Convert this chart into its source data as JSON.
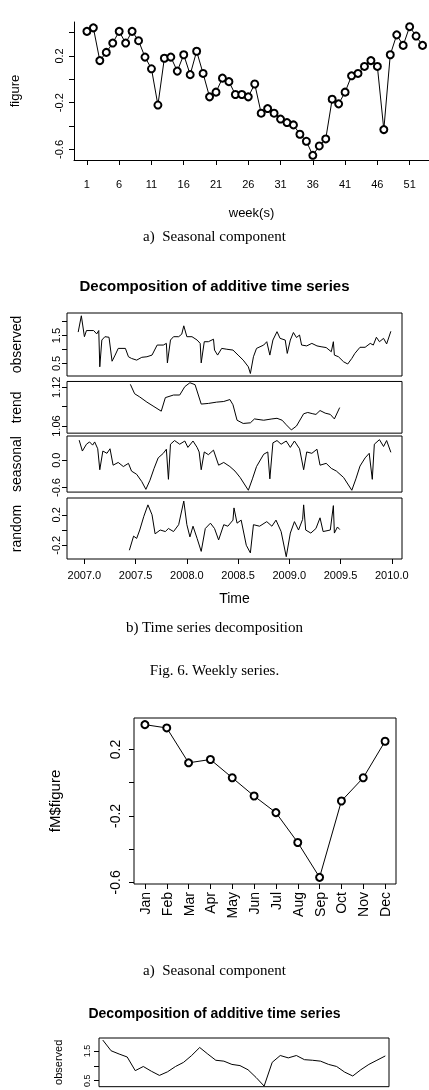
{
  "chart_data": [
    {
      "type": "line",
      "xlabel": "week(s)",
      "ylabel": "figure",
      "annotations": [
        "a)  Seasonal component"
      ],
      "marker": "circle",
      "line_style": "solid",
      "color": "#000000",
      "x": [
        1,
        2,
        3,
        4,
        5,
        6,
        7,
        8,
        9,
        10,
        11,
        12,
        13,
        14,
        15,
        16,
        17,
        18,
        19,
        20,
        21,
        22,
        23,
        24,
        25,
        26,
        27,
        28,
        29,
        30,
        31,
        32,
        33,
        34,
        35,
        36,
        37,
        38,
        39,
        40,
        41,
        42,
        43,
        44,
        45,
        46,
        47,
        48,
        49,
        50,
        51,
        52,
        53
      ],
      "values": [
        0.41,
        0.44,
        0.16,
        0.23,
        0.31,
        0.41,
        0.31,
        0.41,
        0.33,
        0.19,
        0.09,
        -0.22,
        0.18,
        0.19,
        0.07,
        0.21,
        0.04,
        0.24,
        0.05,
        -0.15,
        -0.11,
        0.01,
        -0.02,
        -0.13,
        -0.13,
        -0.15,
        -0.04,
        -0.29,
        -0.25,
        -0.29,
        -0.34,
        -0.37,
        -0.39,
        -0.47,
        -0.53,
        -0.65,
        -0.57,
        -0.51,
        -0.17,
        -0.21,
        -0.11,
        0.03,
        0.05,
        0.11,
        0.16,
        0.11,
        -0.43,
        0.21,
        0.38,
        0.29,
        0.45,
        0.37,
        0.29
      ],
      "xlim": [
        -1,
        54
      ],
      "xticks": [
        1,
        6,
        11,
        16,
        21,
        26,
        31,
        36,
        41,
        46,
        51
      ],
      "ylim": [
        -0.69,
        0.49
      ],
      "yticks": [
        -0.6,
        {
          "value": -0.4,
          "label": null
        },
        -0.2,
        {
          "value": 0,
          "label": null
        },
        0.2,
        {
          "value": 0.4,
          "label": null
        }
      ]
    },
    {
      "type": "line",
      "title": "Decomposition of additive time series",
      "ylabel": "observed",
      "color": "#000000",
      "tick_labels": "y",
      "x": [
        2006.94,
        2006.97,
        2007.0,
        2007.02,
        2007.09,
        2007.12,
        2007.14,
        2007.15,
        2007.17,
        2007.2,
        2007.24,
        2007.27,
        2007.3,
        2007.33,
        2007.4,
        2007.43,
        2007.46,
        2007.51,
        2007.56,
        2007.61,
        2007.66,
        2007.71,
        2007.77,
        2007.8,
        2007.81,
        2007.84,
        2007.87,
        2007.92,
        2007.95,
        2007.97,
        2008.0,
        2008.05,
        2008.1,
        2008.13,
        2008.14,
        2008.17,
        2008.21,
        2008.26,
        2008.27,
        2008.3,
        2008.34,
        2008.39,
        2008.45,
        2008.5,
        2008.55,
        2008.6,
        2008.62,
        2008.65,
        2008.68,
        2008.75,
        2008.78,
        2008.81,
        2008.84,
        2008.88,
        2008.91,
        2008.96,
        2008.98,
        2009.01,
        2009.04,
        2009.07,
        2009.1,
        2009.12,
        2009.17,
        2009.22,
        2009.27,
        2009.31,
        2009.36,
        2009.41,
        2009.43,
        2009.44,
        2009.48,
        2009.53,
        2009.57,
        2009.61,
        2009.64,
        2009.69,
        2009.74,
        2009.79,
        2009.82,
        2009.85,
        2009.88,
        2009.92,
        2009.95,
        2009.99
      ],
      "values": [
        1.64,
        2.21,
        1.46,
        1.68,
        1.68,
        1.56,
        1.68,
        0.38,
        1.34,
        1.46,
        1.44,
        0.58,
        0.8,
        1.04,
        1.04,
        0.74,
        0.68,
        0.62,
        0.72,
        0.74,
        0.8,
        1.16,
        1.16,
        1.22,
        0.52,
        1.34,
        1.46,
        1.46,
        1.55,
        1.85,
        1.46,
        1.46,
        1.34,
        1.22,
        0.52,
        1.28,
        1.28,
        1.37,
        0.98,
        0.8,
        1.04,
        1.01,
        0.98,
        0.8,
        0.62,
        0.38,
        0.14,
        0.74,
        1.04,
        1.16,
        1.28,
        0.8,
        1.34,
        1.64,
        1.4,
        1.34,
        0.86,
        1.34,
        1.61,
        1.43,
        1.52,
        1.16,
        1.13,
        1.22,
        1.13,
        1.1,
        1.07,
        0.92,
        1.28,
        0.8,
        0.74,
        0.56,
        0.48,
        0.68,
        0.86,
        1.08,
        1.08,
        1.22,
        1.16,
        1.44,
        1.28,
        1.4,
        1.2,
        1.64
      ],
      "xlim": [
        2006.83,
        2010.1
      ],
      "ylim": [
        0.05,
        2.31
      ],
      "yticks": [
        0.5,
        {
          "value": 1,
          "label": null
        },
        1.5,
        {
          "value": 2,
          "label": null
        }
      ]
    },
    {
      "type": "line",
      "ylabel": "trend",
      "color": "#000000",
      "tick_labels": "y",
      "x": [
        2007.45,
        2007.49,
        2007.54,
        2007.61,
        2007.67,
        2007.75,
        2007.79,
        2007.87,
        2007.93,
        2007.98,
        2008.03,
        2008.08,
        2008.14,
        2008.21,
        2008.29,
        2008.36,
        2008.42,
        2008.45,
        2008.49,
        2008.55,
        2008.62,
        2008.66,
        2008.75,
        2008.83,
        2008.88,
        2008.93,
        2008.97,
        2009.02,
        2009.07,
        2009.14,
        2009.18,
        2009.23,
        2009.26,
        2009.3,
        2009.35,
        2009.4,
        2009.44,
        2009.49
      ],
      "values": [
        1.124,
        1.11,
        1.105,
        1.097,
        1.091,
        1.083,
        1.104,
        1.108,
        1.108,
        1.121,
        1.127,
        1.124,
        1.094,
        1.095,
        1.097,
        1.098,
        1.101,
        1.093,
        1.069,
        1.064,
        1.065,
        1.071,
        1.069,
        1.071,
        1.072,
        1.069,
        1.062,
        1.054,
        1.06,
        1.079,
        1.081,
        1.079,
        1.078,
        1.084,
        1.08,
        1.078,
        1.071,
        1.088
      ],
      "xlim": [
        2006.83,
        2010.1
      ],
      "ylim": [
        1.049,
        1.129
      ],
      "yticks": [
        1.06,
        {
          "value": 1.09,
          "label": null
        },
        1.12
      ]
    },
    {
      "type": "line",
      "ylabel": "seasonal",
      "color": "#000000",
      "tick_labels": "y",
      "x": [
        2006.95,
        2006.98,
        2007.02,
        2007.05,
        2007.08,
        2007.1,
        2007.13,
        2007.15,
        2007.18,
        2007.22,
        2007.25,
        2007.28,
        2007.33,
        2007.38,
        2007.43,
        2007.46,
        2007.51,
        2007.56,
        2007.6,
        2007.64,
        2007.68,
        2007.72,
        2007.77,
        2007.8,
        2007.82,
        2007.84,
        2007.88,
        2007.93,
        2007.98,
        2008.01,
        2008.06,
        2008.1,
        2008.12,
        2008.14,
        2008.17,
        2008.21,
        2008.26,
        2008.31,
        2008.36,
        2008.42,
        2008.47,
        2008.52,
        2008.6,
        2008.64,
        2008.68,
        2008.75,
        2008.79,
        2008.81,
        2008.84,
        2008.88,
        2008.92,
        2008.97,
        2009.01,
        2009.05,
        2009.1,
        2009.14,
        2009.17,
        2009.22,
        2009.27,
        2009.3,
        2009.36,
        2009.41,
        2009.46,
        2009.53,
        2009.61,
        2009.65,
        2009.69,
        2009.74,
        2009.78,
        2009.81,
        2009.83,
        2009.88,
        2009.92,
        2009.95,
        2009.99
      ],
      "values": [
        0.43,
        0.2,
        0.35,
        0.4,
        0.33,
        0.4,
        0.25,
        -0.21,
        0.2,
        0.15,
        0.25,
        -0.11,
        -0.05,
        -0.14,
        -0.07,
        -0.24,
        -0.31,
        -0.47,
        -0.64,
        -0.44,
        -0.18,
        0.05,
        0.15,
        0.24,
        -0.42,
        0.35,
        0.43,
        0.35,
        0.42,
        0.28,
        0.42,
        0.28,
        0.18,
        -0.21,
        0.18,
        0.12,
        0.22,
        -0.11,
        -0.05,
        -0.14,
        -0.24,
        -0.38,
        -0.66,
        -0.41,
        -0.14,
        0.13,
        0.18,
        -0.41,
        0.38,
        0.43,
        0.35,
        0.42,
        0.28,
        0.42,
        0.25,
        -0.21,
        0.18,
        0.15,
        0.24,
        -0.11,
        -0.07,
        -0.18,
        -0.24,
        -0.38,
        -0.66,
        -0.41,
        -0.13,
        0.05,
        0.15,
        -0.42,
        0.35,
        0.45,
        0.3,
        0.43,
        0.18
      ],
      "xlim": [
        2006.83,
        2010.1
      ],
      "ylim": [
        -0.7,
        0.53
      ],
      "yticks": [
        -0.6,
        {
          "value": 0,
          "label": "0.0"
        }
      ]
    },
    {
      "type": "line",
      "ylabel": "random",
      "xlabel": "Time",
      "annotations": [
        "b) Time series decomposition",
        "Fig. 6. Weekly series."
      ],
      "color": "#000000",
      "x": [
        2007.44,
        2007.48,
        2007.51,
        2007.54,
        2007.58,
        2007.62,
        2007.66,
        2007.69,
        2007.74,
        2007.79,
        2007.82,
        2007.87,
        2007.92,
        2007.97,
        2008.0,
        2008.03,
        2008.06,
        2008.1,
        2008.14,
        2008.18,
        2008.23,
        2008.27,
        2008.31,
        2008.36,
        2008.4,
        2008.45,
        2008.46,
        2008.49,
        2008.53,
        2008.58,
        2008.62,
        2008.65,
        2008.71,
        2008.78,
        2008.83,
        2008.87,
        2008.92,
        2008.97,
        2009.01,
        2009.05,
        2009.09,
        2009.13,
        2009.14,
        2009.16,
        2009.21,
        2009.26,
        2009.3,
        2009.33,
        2009.4,
        2009.43,
        2009.44,
        2009.47,
        2009.49
      ],
      "values": [
        -0.26,
        -0.08,
        -0.11,
        0.0,
        0.18,
        0.33,
        0.2,
        -0.05,
        0.0,
        -0.02,
        0.02,
        -0.02,
        0.07,
        0.38,
        0.07,
        -0.09,
        0.05,
        -0.11,
        -0.28,
        0.02,
        0.09,
        0.02,
        -0.13,
        0.07,
        0.05,
        0.13,
        0.29,
        0.09,
        0.13,
        -0.2,
        -0.3,
        0.07,
        0.05,
        0.11,
        0.05,
        0.13,
        -0.02,
        -0.35,
        -0.04,
        0.11,
        0.0,
        0.14,
        0.33,
        0.0,
        -0.04,
        0.02,
        0.16,
        -0.02,
        0.0,
        0.32,
        -0.04,
        0.04,
        0.01
      ],
      "xlim": [
        2006.83,
        2010.1
      ],
      "xticks": [
        {
          "value": 2007,
          "label": "2007.0"
        },
        2007.5,
        {
          "value": 2008,
          "label": "2008.0"
        },
        2008.5,
        {
          "value": 2009,
          "label": "2009.0"
        },
        2009.5,
        {
          "value": 2010,
          "label": "2010.0"
        }
      ],
      "ylim": [
        -0.38,
        0.42
      ],
      "yticks": [
        -0.2,
        {
          "value": 0,
          "label": null
        },
        0.2
      ]
    },
    {
      "type": "line",
      "ylabel": "fM$figure",
      "annotations": [
        "a)  Seasonal component"
      ],
      "marker": "circle",
      "line_style": "solid",
      "color": "#000000",
      "categories": [
        "Jan",
        "Feb",
        "Mar",
        "Apr",
        "May",
        "Jun",
        "Jul",
        "Aug",
        "Sep",
        "Oct",
        "Nov",
        "Dec"
      ],
      "values": [
        0.35,
        0.33,
        0.12,
        0.14,
        0.03,
        -0.08,
        -0.18,
        -0.36,
        -0.57,
        -0.11,
        0.03,
        0.25
      ],
      "ylim": [
        -0.61,
        0.39
      ],
      "yticks": [
        -0.6,
        {
          "value": -0.4,
          "label": null
        },
        -0.2,
        {
          "value": 0,
          "label": null
        },
        0.2
      ]
    },
    {
      "type": "line",
      "title": "Decomposition of additive time series",
      "ylabel": "observed",
      "color": "#000000",
      "tick_labels": "y",
      "categories": [
        null,
        null,
        null,
        null,
        null,
        null,
        null,
        null,
        null,
        null,
        null,
        null,
        null,
        null,
        null,
        null,
        null,
        null,
        null,
        null,
        null,
        null,
        null,
        null,
        null,
        null,
        null,
        null,
        null,
        null,
        null,
        null,
        null,
        null,
        null,
        null
      ],
      "values": [
        1.86,
        1.51,
        1.4,
        1.3,
        0.84,
        0.98,
        0.82,
        0.68,
        0.8,
        0.98,
        1.12,
        1.35,
        1.62,
        1.4,
        1.19,
        1.16,
        1.05,
        1.01,
        0.87,
        0.61,
        0.32,
        1.12,
        1.35,
        1.27,
        1.35,
        1.21,
        1.19,
        1.16,
        1.05,
        0.98,
        0.79,
        0.66,
        0.87,
        1.05,
        1.19,
        1.33
      ],
      "ylim": [
        0.3,
        1.94
      ],
      "yticks": [
        0.5,
        {
          "value": 1,
          "label": null
        },
        1.5
      ]
    }
  ]
}
